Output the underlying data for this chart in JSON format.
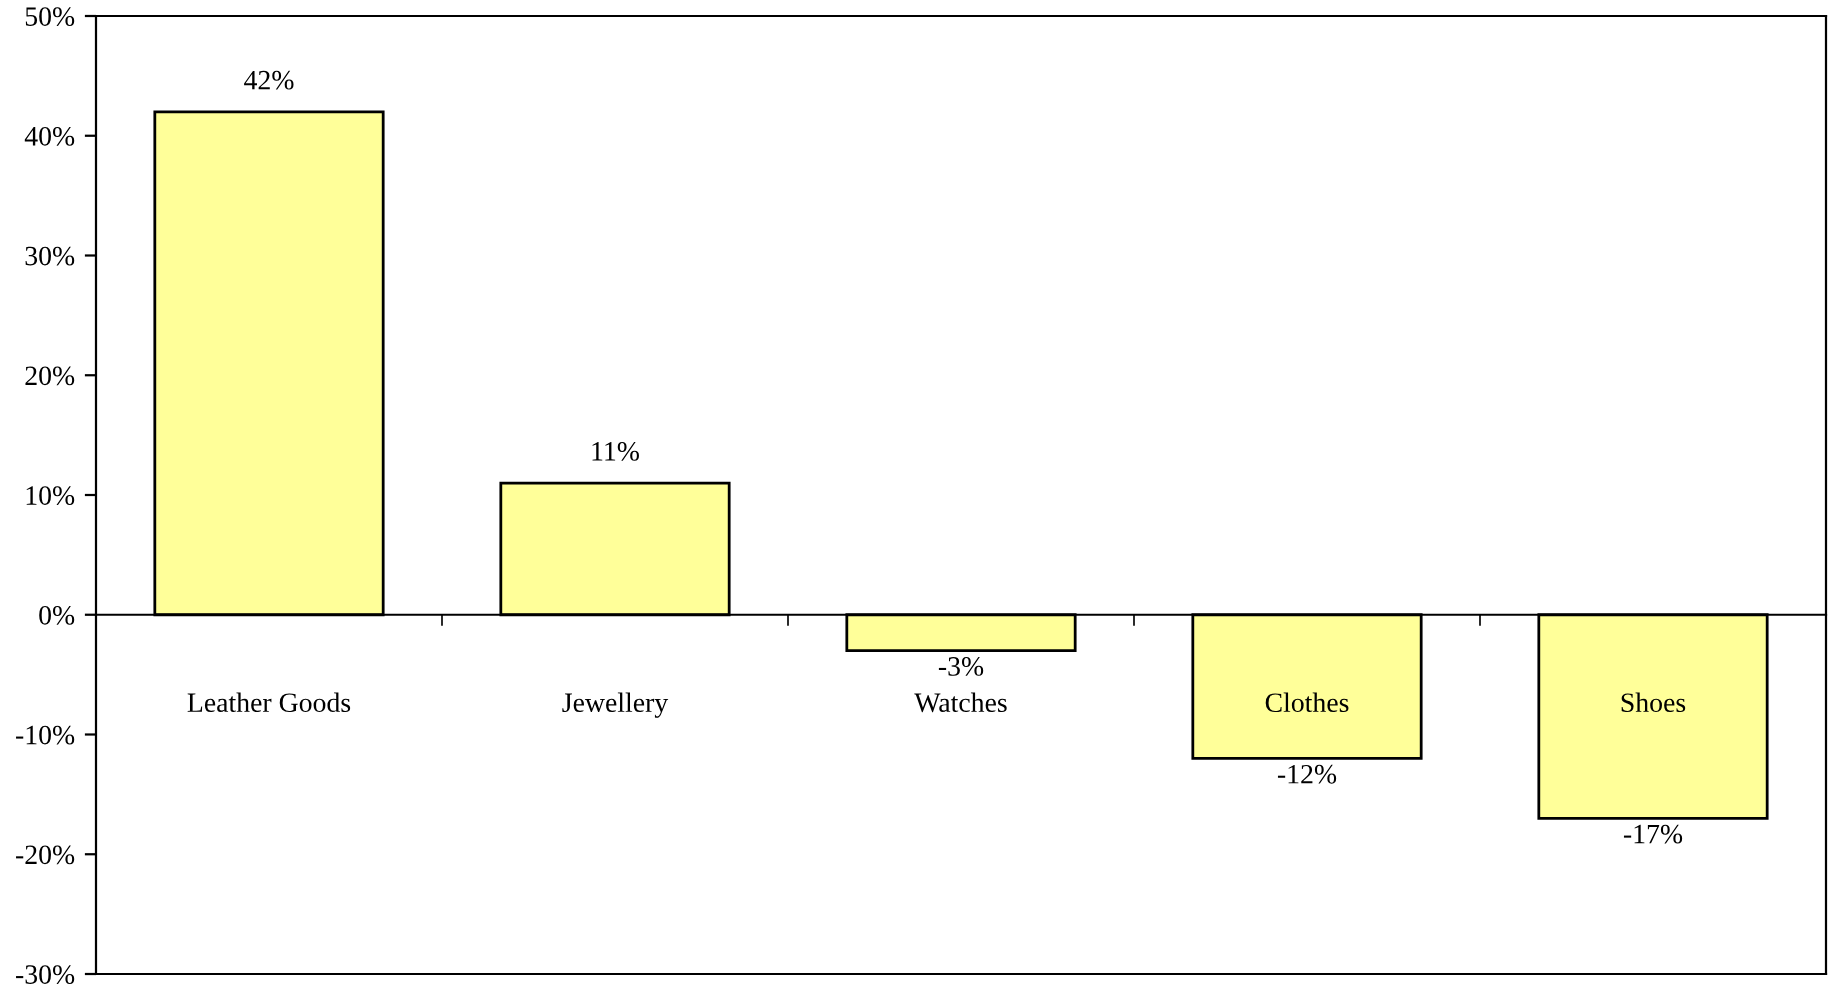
{
  "chart_data": {
    "type": "bar",
    "categories": [
      "Leather Goods",
      "Jewellery",
      "Watches",
      "Clothes",
      "Shoes"
    ],
    "values": [
      42,
      11,
      -3,
      -12,
      -17
    ],
    "color": "#ffff99",
    "value_labels": [
      "42%",
      "11%",
      "-3%",
      "-12%",
      "-17%"
    ],
    "ylim": [
      -30,
      50
    ],
    "yticks": [
      {
        "value": -30,
        "label": "-30%"
      },
      {
        "value": -20,
        "label": "-20%"
      },
      {
        "value": -10,
        "label": "-10%"
      },
      {
        "value": 0,
        "label": "0%"
      },
      {
        "value": 10,
        "label": "10%"
      },
      {
        "value": 20,
        "label": "20%"
      },
      {
        "value": 30,
        "label": "30%"
      },
      {
        "value": 40,
        "label": "40%"
      },
      {
        "value": 50,
        "label": "50%"
      }
    ],
    "legend": false
  }
}
